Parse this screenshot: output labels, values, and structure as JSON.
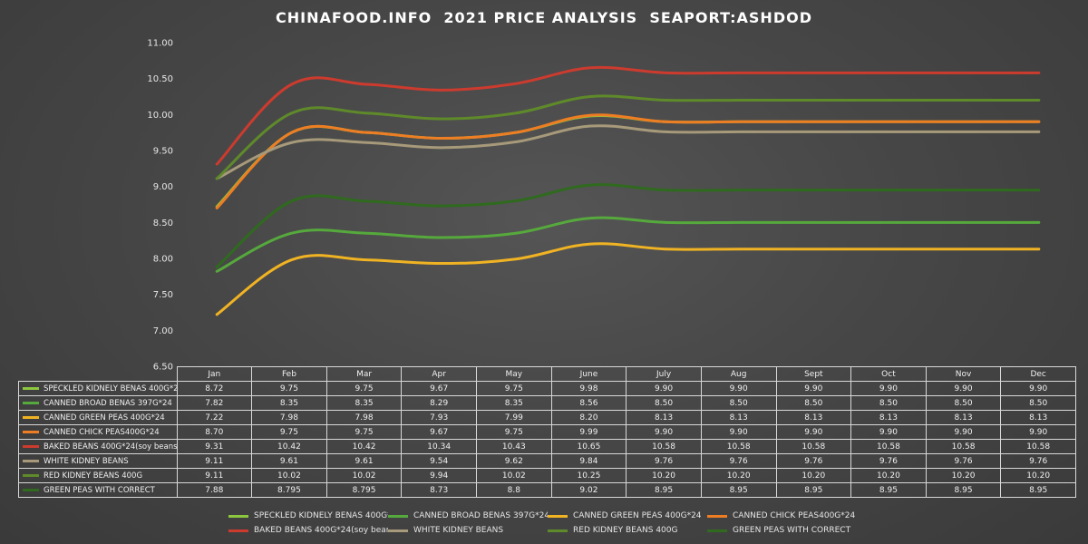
{
  "title": "CHINAFOOD.INFO  2021 PRICE ANALYSIS  SEAPORT:ASHDOD",
  "chart_data": {
    "type": "line",
    "title": "CHINAFOOD.INFO  2021 PRICE ANALYSIS  SEAPORT:ASHDOD",
    "categories": [
      "Jan",
      "Feb",
      "Mar",
      "Apr",
      "May",
      "June",
      "July",
      "Aug",
      "Sept",
      "Oct",
      "Nov",
      "Dec"
    ],
    "ylim": [
      6.5,
      11.0
    ],
    "yticks": [
      "6.50",
      "7.00",
      "7.50",
      "8.00",
      "8.50",
      "9.00",
      "9.50",
      "10.00",
      "10.50",
      "11.00"
    ],
    "grid": false,
    "legend_position": "bottom",
    "data_table": true,
    "series": [
      {
        "name": "SPECKLED KIDNELY BENAS 400G*24",
        "color": "#8dc63f",
        "values": [
          8.72,
          9.75,
          9.75,
          9.67,
          9.75,
          9.98,
          9.9,
          9.9,
          9.9,
          9.9,
          9.9,
          9.9
        ],
        "labels": [
          "8.72",
          "9.75",
          "9.75",
          "9.67",
          "9.75",
          "9.98",
          "9.90",
          "9.90",
          "9.90",
          "9.90",
          "9.90",
          "9.90"
        ]
      },
      {
        "name": "CANNED BROAD BENAS 397G*24",
        "color": "#56a93c",
        "values": [
          7.82,
          8.35,
          8.35,
          8.29,
          8.35,
          8.56,
          8.5,
          8.5,
          8.5,
          8.5,
          8.5,
          8.5
        ],
        "labels": [
          "7.82",
          "8.35",
          "8.35",
          "8.29",
          "8.35",
          "8.56",
          "8.50",
          "8.50",
          "8.50",
          "8.50",
          "8.50",
          "8.50"
        ]
      },
      {
        "name": "CANNED GREEN PEAS 400G*24",
        "color": "#f0b323",
        "values": [
          7.22,
          7.98,
          7.98,
          7.93,
          7.99,
          8.2,
          8.13,
          8.13,
          8.13,
          8.13,
          8.13,
          8.13
        ],
        "labels": [
          "7.22",
          "7.98",
          "7.98",
          "7.93",
          "7.99",
          "8.20",
          "8.13",
          "8.13",
          "8.13",
          "8.13",
          "8.13",
          "8.13"
        ]
      },
      {
        "name": "CANNED CHICK PEAS400G*24",
        "color": "#ee7d23",
        "values": [
          8.7,
          9.75,
          9.75,
          9.67,
          9.75,
          9.99,
          9.9,
          9.9,
          9.9,
          9.9,
          9.9,
          9.9
        ],
        "labels": [
          "8.70",
          "9.75",
          "9.75",
          "9.67",
          "9.75",
          "9.99",
          "9.90",
          "9.90",
          "9.90",
          "9.90",
          "9.90",
          "9.90"
        ]
      },
      {
        "name": "BAKED BEANS 400G*24(soy beans)",
        "color": "#cc3b2e",
        "values": [
          9.31,
          10.42,
          10.42,
          10.34,
          10.43,
          10.65,
          10.58,
          10.58,
          10.58,
          10.58,
          10.58,
          10.58
        ],
        "labels": [
          "9.31",
          "10.42",
          "10.42",
          "10.34",
          "10.43",
          "10.65",
          "10.58",
          "10.58",
          "10.58",
          "10.58",
          "10.58",
          "10.58"
        ]
      },
      {
        "name": "WHITE KIDNEY BEANS",
        "color": "#a79a7a",
        "values": [
          9.11,
          9.61,
          9.61,
          9.54,
          9.62,
          9.84,
          9.76,
          9.76,
          9.76,
          9.76,
          9.76,
          9.76
        ],
        "labels": [
          "9.11",
          "9.61",
          "9.61",
          "9.54",
          "9.62",
          "9.84",
          "9.76",
          "9.76",
          "9.76",
          "9.76",
          "9.76",
          "9.76"
        ]
      },
      {
        "name": "RED KIDNEY BEANS 400G",
        "color": "#5f8a2a",
        "values": [
          9.11,
          10.02,
          10.02,
          9.94,
          10.02,
          10.25,
          10.2,
          10.2,
          10.2,
          10.2,
          10.2,
          10.2
        ],
        "labels": [
          "9.11",
          "10.02",
          "10.02",
          "9.94",
          "10.02",
          "10.25",
          "10.20",
          "10.20",
          "10.20",
          "10.20",
          "10.20",
          "10.20"
        ]
      },
      {
        "name": "GREEN PEAS WITH CORRECT",
        "color": "#2f6a1e",
        "values": [
          7.88,
          8.795,
          8.795,
          8.73,
          8.8,
          9.02,
          8.95,
          8.95,
          8.95,
          8.95,
          8.95,
          8.95
        ],
        "labels": [
          "7.88",
          "8.795",
          "8.795",
          "8.73",
          "8.8",
          "9.02",
          "8.95",
          "8.95",
          "8.95",
          "8.95",
          "8.95",
          "8.95"
        ]
      }
    ]
  }
}
